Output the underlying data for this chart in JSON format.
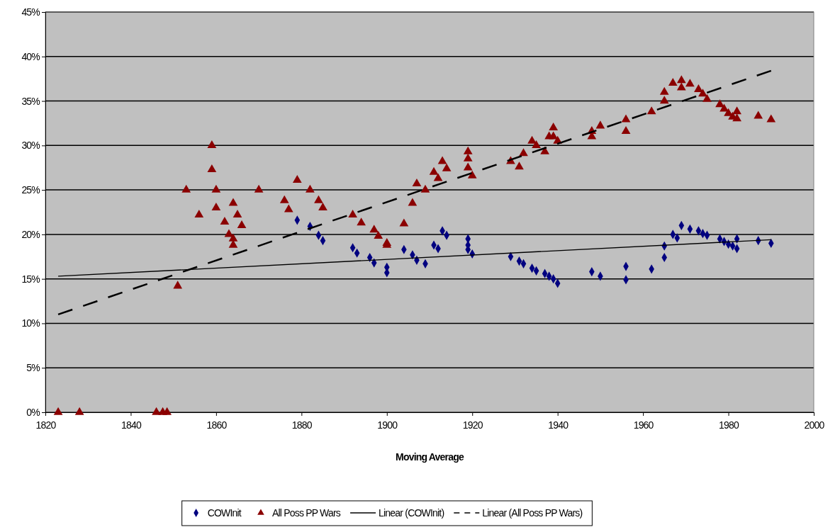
{
  "chart_data": {
    "type": "scatter",
    "xlabel": "Moving Average",
    "xlim": [
      1820,
      2000
    ],
    "xticks": [
      1820,
      1840,
      1860,
      1880,
      1900,
      1920,
      1940,
      1960,
      1980,
      2000
    ],
    "ylim": [
      0,
      45
    ],
    "yticks": [
      {
        "value": 0,
        "label": "0%"
      },
      {
        "value": 5,
        "label": "5%"
      },
      {
        "value": 10,
        "label": "10%"
      },
      {
        "value": 15,
        "label": "15%"
      },
      {
        "value": 20,
        "label": "20%"
      },
      {
        "value": 25,
        "label": "25%"
      },
      {
        "value": 30,
        "label": "30%"
      },
      {
        "value": 35,
        "label": "35%"
      },
      {
        "value": 40,
        "label": "40%"
      },
      {
        "value": 45,
        "label": "45%"
      }
    ],
    "grid": "y",
    "legend": "bottom",
    "series": [
      {
        "name": "COWInit",
        "marker": "diamond",
        "color": "#000080",
        "x": [
          1879,
          1882,
          1884,
          1885,
          1892,
          1893,
          1896,
          1897,
          1900,
          1900,
          1904,
          1906,
          1907,
          1909,
          1911,
          1912,
          1913,
          1914,
          1919,
          1919,
          1919,
          1920,
          1929,
          1931,
          1932,
          1934,
          1935,
          1937,
          1938,
          1939,
          1940,
          1948,
          1950,
          1956,
          1956,
          1962,
          1965,
          1965,
          1967,
          1968,
          1969,
          1971,
          1973,
          1974,
          1975,
          1978,
          1979,
          1980,
          1981,
          1982,
          1982,
          1987,
          1990
        ],
        "values": [
          21.6,
          20.9,
          19.9,
          19.3,
          18.5,
          17.9,
          17.4,
          16.8,
          16.3,
          15.7,
          18.3,
          17.7,
          17.1,
          16.7,
          18.8,
          18.4,
          20.4,
          19.9,
          19.5,
          18.8,
          18.3,
          17.8,
          17.5,
          17.0,
          16.7,
          16.2,
          15.9,
          15.6,
          15.3,
          15.0,
          14.5,
          15.8,
          15.3,
          16.4,
          14.9,
          16.1,
          17.4,
          18.7,
          20.0,
          19.6,
          21.0,
          20.6,
          20.4,
          20.1,
          19.9,
          19.5,
          19.2,
          18.9,
          18.7,
          19.5,
          18.4,
          19.3,
          19.0
        ]
      },
      {
        "name": "All Poss PP Wars",
        "marker": "triangle",
        "color": "#8b0000",
        "x": [
          1823,
          1828,
          1846,
          1847.5,
          1848.5,
          1851,
          1853,
          1856,
          1859,
          1859,
          1860,
          1860,
          1862,
          1863,
          1864,
          1864,
          1864,
          1865,
          1866,
          1870,
          1876,
          1877,
          1879,
          1882,
          1884,
          1885,
          1892,
          1894,
          1897,
          1898,
          1900,
          1900,
          1904,
          1906,
          1907,
          1909,
          1911,
          1912,
          1913,
          1914,
          1919,
          1919,
          1919,
          1920,
          1929,
          1931,
          1932,
          1934,
          1935,
          1937,
          1938,
          1939,
          1939,
          1940,
          1948,
          1948,
          1950,
          1956,
          1956,
          1962,
          1965,
          1965,
          1967,
          1969,
          1969,
          1971,
          1973,
          1974,
          1975,
          1978,
          1979,
          1980,
          1981,
          1982,
          1982,
          1987,
          1990
        ],
        "values": [
          0,
          0,
          0,
          0,
          0,
          14.2,
          25.0,
          22.2,
          30.0,
          27.3,
          25.0,
          23.0,
          21.4,
          20.0,
          18.8,
          19.5,
          23.5,
          22.2,
          21.0,
          25.0,
          23.8,
          22.8,
          26.1,
          25.0,
          23.8,
          23.0,
          22.2,
          21.3,
          20.5,
          19.8,
          19.0,
          18.8,
          21.2,
          23.5,
          25.7,
          25.0,
          27.0,
          26.3,
          28.2,
          27.4,
          29.3,
          28.5,
          27.5,
          26.6,
          28.2,
          27.6,
          29.1,
          30.5,
          30.0,
          29.3,
          31.0,
          32.0,
          31.0,
          30.5,
          31.6,
          31.0,
          32.2,
          32.9,
          31.6,
          33.8,
          35.0,
          36.0,
          37.0,
          37.3,
          36.5,
          36.9,
          36.3,
          35.8,
          35.2,
          34.6,
          34.1,
          33.6,
          33.2,
          33.8,
          33.0,
          33.3,
          32.9
        ]
      },
      {
        "name": "Linear (COWInit)",
        "type": "line",
        "marker": "none",
        "line_style": "solid",
        "color": "#000000",
        "x": [
          1823,
          1990
        ],
        "values": [
          15.3,
          19.4
        ]
      },
      {
        "name": "Linear (All Poss PP Wars)",
        "type": "line",
        "marker": "none",
        "line_style": "dashed",
        "color": "#000000",
        "x": [
          1823,
          1990
        ],
        "values": [
          11.0,
          38.4
        ]
      }
    ]
  }
}
